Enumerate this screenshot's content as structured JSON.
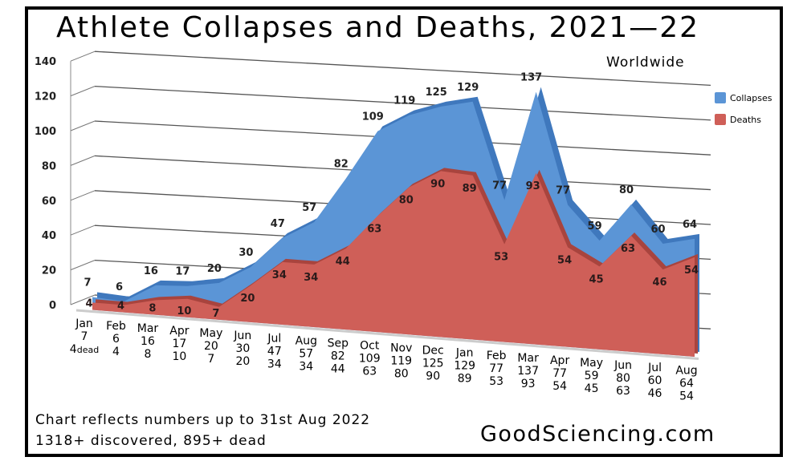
{
  "chart_data": {
    "type": "area",
    "title": "Athlete Collapses and Deaths, 2021—22",
    "subtitle": "Worldwide",
    "categories": [
      "Jan",
      "Feb",
      "Mar",
      "Apr",
      "May",
      "Jun",
      "Jul",
      "Aug",
      "Sep",
      "Oct",
      "Nov",
      "Dec",
      "Jan",
      "Feb",
      "Mar",
      "Apr",
      "May",
      "Jun",
      "Jul",
      "Aug"
    ],
    "series": [
      {
        "name": "Collapses",
        "color": "#5b95d6",
        "values": [
          7,
          6,
          16,
          17,
          20,
          30,
          47,
          57,
          82,
          109,
          119,
          125,
          129,
          77,
          137,
          77,
          59,
          80,
          60,
          64
        ]
      },
      {
        "name": "Deaths",
        "color": "#cf5f58",
        "values": [
          4,
          4,
          8,
          10,
          7,
          20,
          34,
          34,
          44,
          63,
          80,
          90,
          89,
          53,
          93,
          54,
          45,
          63,
          46,
          54
        ]
      }
    ],
    "first_deaths_suffix": "dead",
    "yticks": [
      0,
      20,
      40,
      60,
      80,
      100,
      120,
      140
    ],
    "ylim": [
      0,
      140
    ],
    "grid": true,
    "legend": "right",
    "three_d": true
  },
  "footer": {
    "note1": "Chart reflects numbers up to 31st Aug 2022",
    "note2": "1318+ discovered, 895+ dead",
    "brand": "GoodSciencing.com"
  }
}
